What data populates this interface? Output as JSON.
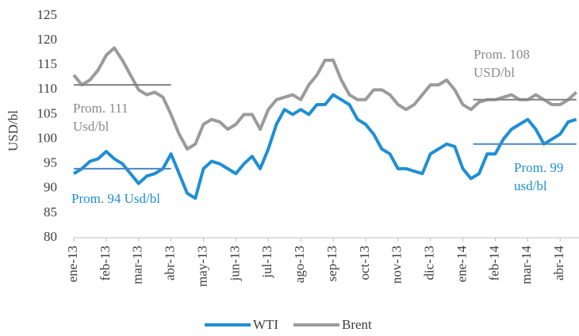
{
  "chart_data": {
    "type": "line",
    "y_axis_label": "USD/bl",
    "categories": [
      "ene-13",
      null,
      null,
      null,
      "feb-13",
      null,
      null,
      null,
      "mar-13",
      null,
      null,
      null,
      "abr-13",
      null,
      null,
      null,
      "may-13",
      null,
      null,
      null,
      "jun-13",
      null,
      null,
      null,
      "jul-13",
      null,
      null,
      null,
      "ago-13",
      null,
      null,
      null,
      "sep-13",
      null,
      null,
      null,
      "oct-13",
      null,
      null,
      null,
      "nov-13",
      null,
      null,
      null,
      "dic-13",
      null,
      null,
      null,
      "ene-14",
      null,
      null,
      null,
      "feb-14",
      null,
      null,
      null,
      "mar-14",
      null,
      null,
      null,
      "abr-14",
      null,
      null
    ],
    "series": [
      {
        "name": "WTI",
        "color": "#1f8fd3",
        "values": [
          93,
          94,
          95.5,
          96,
          97.5,
          96,
          95,
          93,
          91,
          92.5,
          93,
          94,
          97,
          93,
          89,
          88,
          94,
          95.5,
          95,
          94,
          93,
          95,
          96.5,
          94,
          98,
          103,
          106,
          105,
          106,
          105,
          107,
          107,
          109,
          108,
          107,
          104,
          103,
          101,
          98,
          97,
          94,
          94,
          93.5,
          93,
          97,
          98,
          99,
          98.5,
          94,
          92,
          93,
          97,
          97,
          100,
          102,
          103,
          104,
          102,
          99,
          100,
          101,
          103.5,
          104
        ]
      },
      {
        "name": "Brent",
        "color": "#9b9b9b",
        "values": [
          113,
          111,
          112,
          114,
          117,
          118.5,
          116,
          113,
          110,
          109,
          109.5,
          108.5,
          105,
          101,
          98,
          99,
          103,
          104,
          103.5,
          102,
          103,
          105,
          105,
          102,
          106,
          108,
          108.5,
          109,
          108,
          111,
          113,
          116,
          116,
          112,
          109,
          108,
          108,
          110,
          110,
          109,
          107,
          106,
          107,
          109,
          111,
          111,
          112,
          110,
          107,
          106,
          107.5,
          108,
          108,
          108.5,
          109,
          108,
          108,
          109,
          108,
          107,
          107,
          108,
          109.5
        ]
      }
    ],
    "averages": [
      {
        "series": "Brent",
        "lines": [
          "Prom. 111",
          "Usd/bl"
        ],
        "value": 111,
        "from": "ene-13",
        "to": "abr-13",
        "color": "#808080"
      },
      {
        "series": "Brent",
        "lines": [
          "Prom. 108",
          "USD/bl"
        ],
        "value": 108,
        "from": "ene-14",
        "to": "abr-14",
        "color": "#808080"
      },
      {
        "series": "WTI",
        "lines": [
          "Prom. 94 Usd/bl"
        ],
        "value": 94,
        "from": "ene-13",
        "to": "abr-13",
        "color": "#4a86c5"
      },
      {
        "series": "WTI",
        "lines": [
          "Prom. 99",
          "usd/bl"
        ],
        "value": 99,
        "from": "ene-14",
        "to": "abr-14",
        "color": "#4a86c5"
      }
    ],
    "ylim": [
      80,
      125
    ],
    "yticks": [
      80,
      85,
      90,
      95,
      100,
      105,
      110,
      115,
      120,
      125
    ],
    "legend": "bottom"
  }
}
